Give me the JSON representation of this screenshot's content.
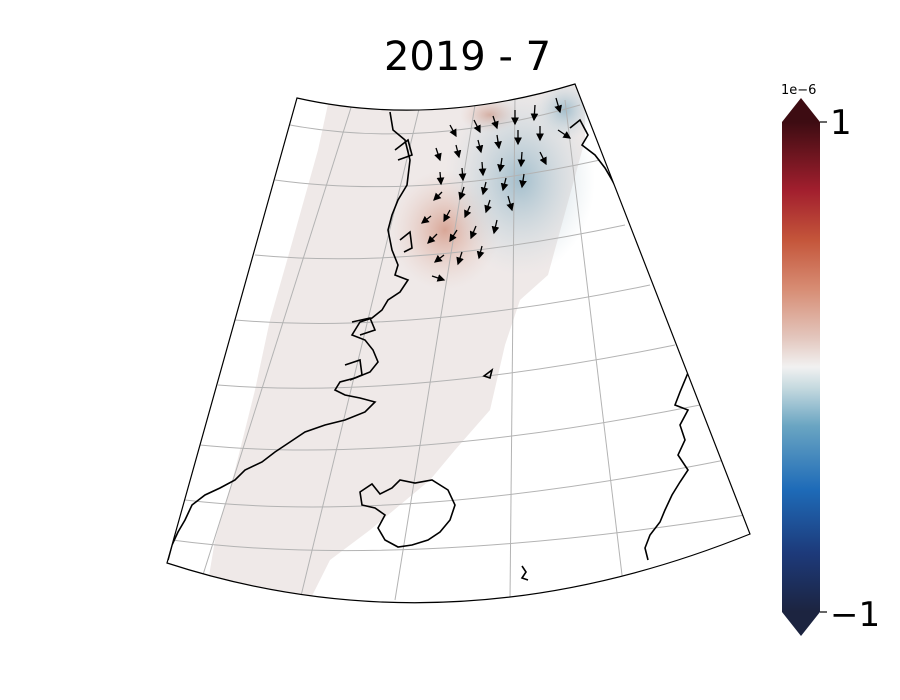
{
  "title": "2019 - 7",
  "colorbar": {
    "exponent_label": "1e−6",
    "max_label": "1",
    "min_label": "−1",
    "colormap": "RdBu_r-like (dark navy to white to dark red)",
    "extend": "both"
  },
  "map": {
    "projection": "conic (Lambert-like), North Atlantic / Greenland / Iceland",
    "gridlines": true,
    "field_colors": {
      "background_tint": "#efe9e8",
      "positive_anomaly": "#d9a494",
      "negative_anomaly": "#a7bfcb"
    },
    "vector_arrows": true
  }
}
